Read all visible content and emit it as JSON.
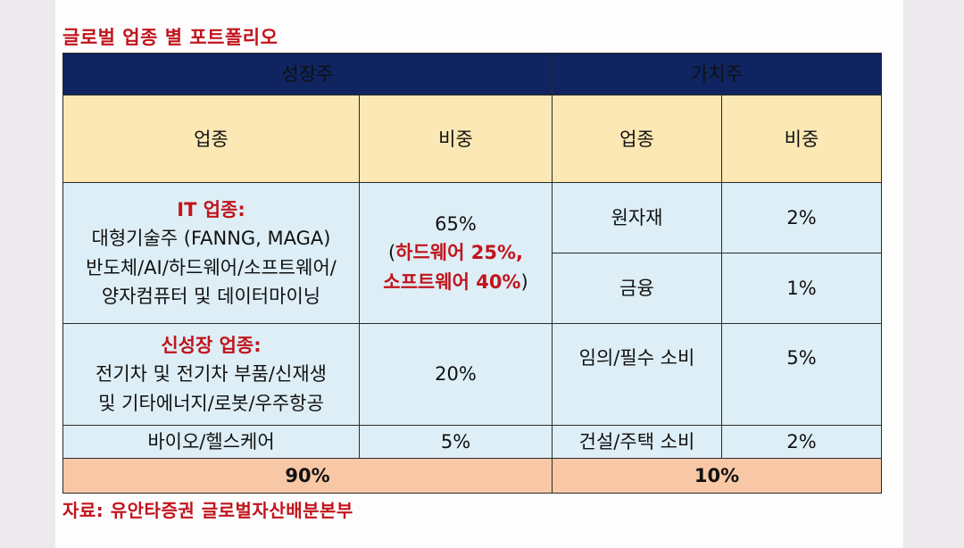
{
  "title": "글로벌 업종 별 포트폴리오",
  "source": "자료: 유안타증권 글로벌자산배분본부",
  "table": {
    "growth_header": "성장주",
    "value_header": "가치주",
    "col_sector": "업종",
    "col_weight": "비중",
    "growth_rows": [
      {
        "heading": "IT 업종:",
        "lines": [
          "대형기술주 (FANNG, MAGA)",
          "반도체/AI/하드웨어/소프트웨어/",
          "양자컴퓨터 및 데이터마이닝"
        ],
        "weight": "65%",
        "weight_open": "(",
        "weight_detail_1": "하드웨어 25%,",
        "weight_detail_2": "소프트웨어 40%",
        "weight_close": ")"
      },
      {
        "heading": "신성장 업종:",
        "lines": [
          "전기차 및 전기차 부품/신재생",
          "및 기타에너지/로봇/우주항공"
        ],
        "weight": "20%"
      },
      {
        "lines": [
          "바이오/헬스케어"
        ],
        "weight": "5%"
      }
    ],
    "value_rows": [
      {
        "sector": "원자재",
        "weight": "2%"
      },
      {
        "sector": "금융",
        "weight": "1%"
      },
      {
        "sector": "임의/필수 소비",
        "weight": "5%"
      },
      {
        "sector": "건설/주택 소비",
        "weight": "2%"
      }
    ],
    "growth_total": "90%",
    "value_total": "10%"
  }
}
